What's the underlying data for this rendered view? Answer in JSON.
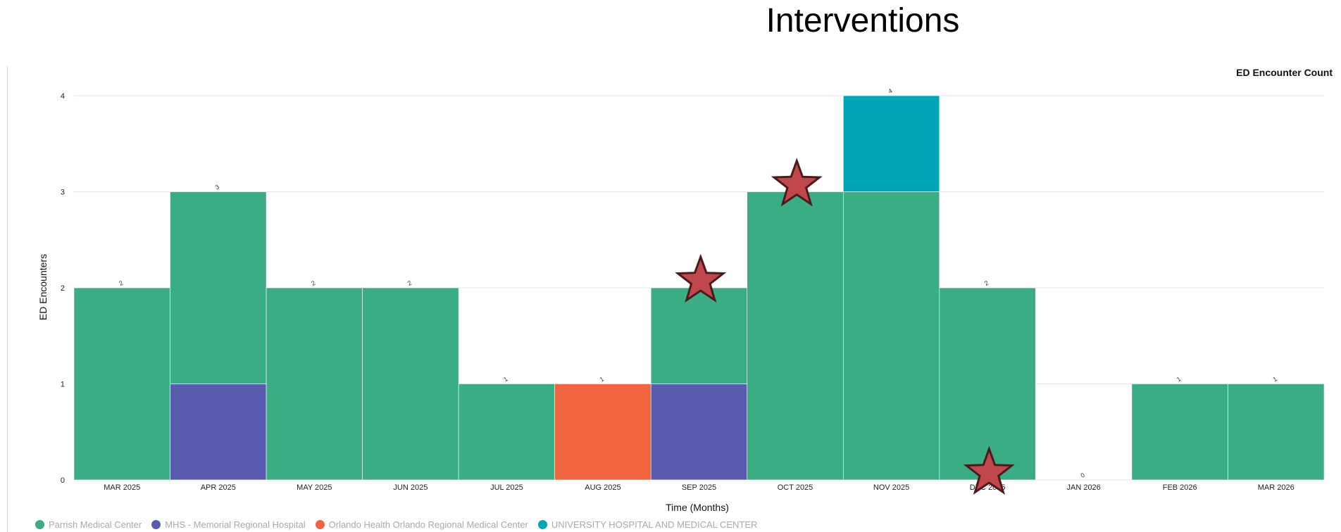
{
  "page": {
    "title": "Interventions"
  },
  "chart_data": {
    "type": "bar",
    "stacked": true,
    "title": "ED Encounter Count",
    "xlabel": "Time (Months)",
    "ylabel": "ED Encounters",
    "ylim": [
      0,
      4
    ],
    "yticks": [
      0,
      1,
      2,
      3,
      4
    ],
    "grid": true,
    "legend_position": "bottom-left",
    "categories": [
      "MAR 2025",
      "APR 2025",
      "MAY 2025",
      "JUN 2025",
      "JUL 2025",
      "AUG 2025",
      "SEP 2025",
      "OCT 2025",
      "NOV 2025",
      "DEC 2025",
      "JAN 2026",
      "FEB 2026",
      "MAR 2026"
    ],
    "series": [
      {
        "name": "Parrish Medical Center",
        "color": "#3bad85",
        "values": [
          2,
          2,
          2,
          2,
          1,
          0,
          1,
          3,
          3,
          2,
          0,
          1,
          1
        ]
      },
      {
        "name": "MHS - Memorial Regional Hospital",
        "color": "#5a5aae",
        "values": [
          0,
          1,
          0,
          0,
          0,
          0,
          1,
          0,
          0,
          0,
          0,
          0,
          0
        ]
      },
      {
        "name": "Orlando Health Orlando Regional Medical Center",
        "color": "#f06440",
        "values": [
          0,
          0,
          0,
          0,
          0,
          1,
          0,
          0,
          0,
          0,
          0,
          0,
          0
        ]
      },
      {
        "name": "UNIVERSITY HOSPITAL AND MEDICAL CENTER",
        "color": "#00a6b8",
        "values": [
          0,
          0,
          0,
          0,
          0,
          0,
          0,
          0,
          1,
          0,
          0,
          0,
          0
        ]
      }
    ],
    "stack_order": [
      1,
      2,
      0,
      3
    ],
    "totals": [
      2,
      3,
      2,
      2,
      1,
      1,
      2,
      3,
      4,
      2,
      0,
      1,
      1
    ],
    "intervention_markers": [
      {
        "category": "SEP 2025",
        "value": 2
      },
      {
        "category": "OCT 2025",
        "value": 3
      },
      {
        "category": "DEC 2025",
        "value": 0
      }
    ],
    "marker_color": "#c0474b"
  }
}
